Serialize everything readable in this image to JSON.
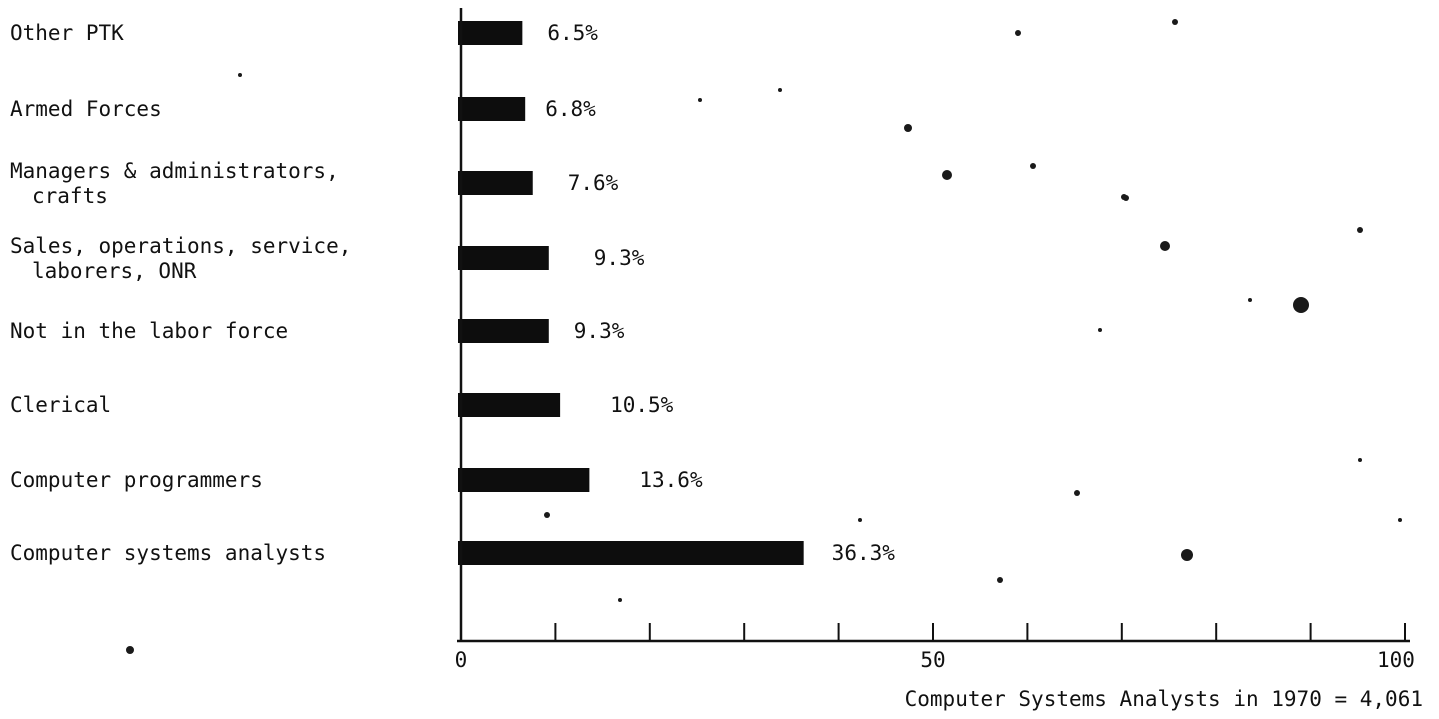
{
  "chart_data": {
    "type": "bar",
    "orientation": "horizontal",
    "categories": [
      [
        "Other PTK"
      ],
      [
        "Armed Forces"
      ],
      [
        "Managers & administrators,",
        "crafts"
      ],
      [
        "Sales, operations, service,",
        "laborers, ONR"
      ],
      [
        "Not in the labor force"
      ],
      [
        "Clerical"
      ],
      [
        "Computer programmers"
      ],
      [
        "Computer systems analysts"
      ]
    ],
    "values": [
      6.5,
      6.8,
      7.6,
      9.3,
      9.3,
      10.5,
      13.6,
      36.3
    ],
    "value_labels": [
      "6.5%",
      "6.8%",
      "7.6%",
      "9.3%",
      "9.3%",
      "10.5%",
      "13.6%",
      "36.3%"
    ],
    "xlim": [
      0,
      100
    ],
    "x_ticks": [
      0,
      10,
      20,
      30,
      40,
      50,
      60,
      70,
      80,
      90,
      100
    ],
    "x_tick_labels": {
      "0": "0",
      "50": "50",
      "100": "100"
    },
    "footnote": "Computer Systems Analysts in 1970 = 4,061",
    "grid": false,
    "bar_color": "#0d0d0d"
  }
}
